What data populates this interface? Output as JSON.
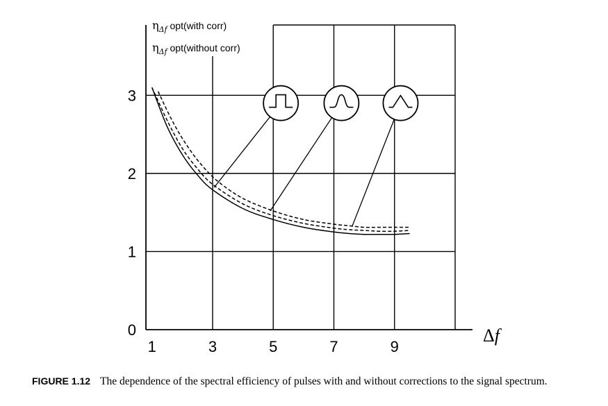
{
  "chart_data": {
    "type": "line",
    "xlabel_symbol": "Δ",
    "xlabel_var": "f",
    "ylabel_lines": [
      {
        "prefix": "η",
        "sub": "Δf",
        "text": " opt(with corr)"
      },
      {
        "prefix": "η",
        "sub": "Δf",
        "text": " opt(without corr)"
      }
    ],
    "x_ticks": [
      1,
      3,
      5,
      7,
      9
    ],
    "y_ticks": [
      0,
      1,
      2,
      3
    ],
    "xlim": [
      0.8,
      11
    ],
    "ylim": [
      0,
      3.9
    ],
    "grid": true,
    "series": [
      {
        "style": "solid",
        "x": [
          1.0,
          1.5,
          2.0,
          2.5,
          3.0,
          4.0,
          5.0,
          6.0,
          7.0,
          7.5,
          8.0,
          8.5,
          9.0,
          9.5
        ],
        "y": [
          3.1,
          2.6,
          2.24,
          1.98,
          1.79,
          1.55,
          1.41,
          1.31,
          1.25,
          1.23,
          1.22,
          1.22,
          1.22,
          1.23
        ]
      },
      {
        "style": "dashed",
        "x": [
          1.0,
          1.5,
          2.0,
          2.5,
          3.0,
          4.0,
          5.0,
          6.0,
          7.0,
          7.5,
          8.0,
          8.5,
          9.0,
          9.5
        ],
        "y": [
          3.1,
          2.68,
          2.32,
          2.06,
          1.86,
          1.61,
          1.46,
          1.36,
          1.3,
          1.28,
          1.27,
          1.26,
          1.26,
          1.27
        ]
      },
      {
        "style": "dashed",
        "x": [
          1.2,
          1.7,
          2.2,
          2.7,
          3.2,
          4.0,
          5.0,
          6.0,
          7.0,
          7.5,
          8.0,
          8.5,
          9.0,
          9.5
        ],
        "y": [
          3.05,
          2.65,
          2.33,
          2.08,
          1.89,
          1.68,
          1.52,
          1.41,
          1.35,
          1.33,
          1.31,
          1.31,
          1.31,
          1.31
        ]
      }
    ],
    "pulse_icons": [
      {
        "shape": "rect-pulse",
        "x": 5.25,
        "y": 2.9,
        "point_x": 3.05,
        "point_y": 1.82
      },
      {
        "shape": "bell-pulse",
        "x": 7.25,
        "y": 2.9,
        "point_x": 4.9,
        "point_y": 1.52
      },
      {
        "shape": "triangle-pulse",
        "x": 9.2,
        "y": 2.9,
        "point_x": 7.6,
        "point_y": 1.32
      }
    ]
  },
  "caption": {
    "label": "FIGURE 1.12",
    "text": "The dependence of the spectral efficiency of pulses with and without corrections to the signal spectrum."
  }
}
